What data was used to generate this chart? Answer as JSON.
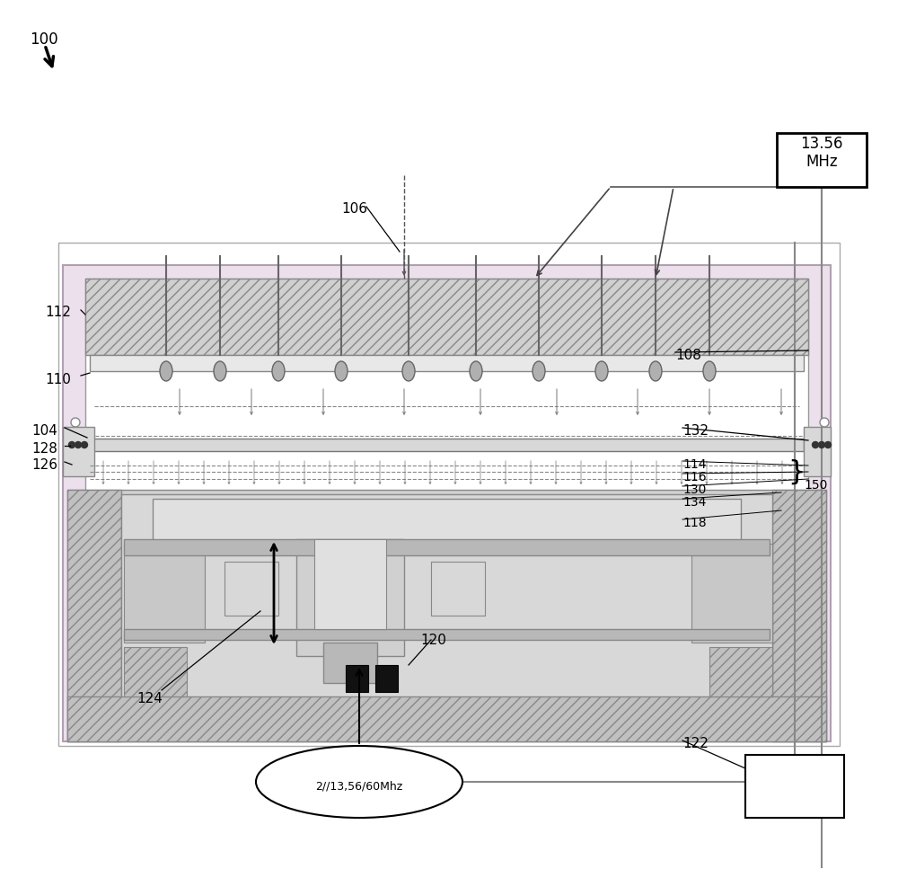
{
  "bg_color": "#ffffff",
  "pink_fill": "#ede0ed",
  "green_fill": "#e8f0e8",
  "gray_hatch": "#c8c8c8",
  "light_gray": "#e0e0e0",
  "mid_gray": "#c8c8c8",
  "dark_gray": "#a0a0a0",
  "freq_box_text": "13.56\nMHz",
  "ellipse_text": "2//13,56/60Mhz"
}
